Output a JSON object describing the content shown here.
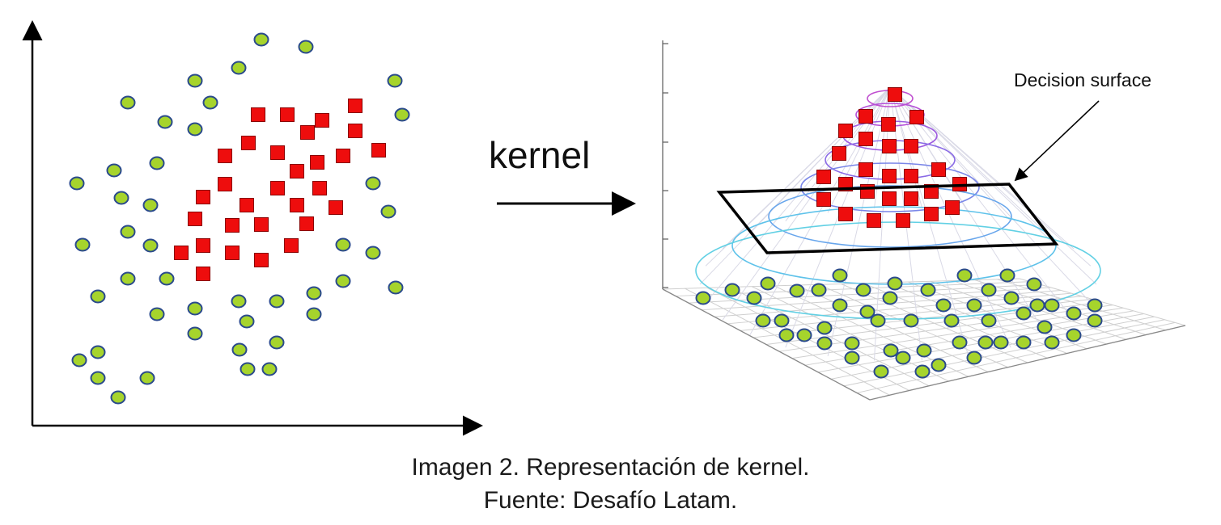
{
  "figure": {
    "arrow_label": "kernel",
    "surface_label": "Decision surface",
    "colors": {
      "circle_fill": "#a6d42c",
      "circle_stroke": "#2a4a8c",
      "square_fill": "#ee0d0d",
      "square_stroke": "#8a0000",
      "axis": "#000000"
    },
    "icons": {
      "circle": "green-circle-icon",
      "square": "red-square-icon"
    }
  },
  "caption": {
    "line1": "Imagen 2. Representación de kernel.",
    "line2": "Fuente: Desafío Latam."
  }
}
